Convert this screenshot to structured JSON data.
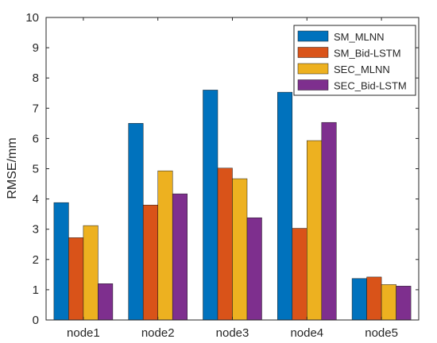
{
  "chart_data": {
    "type": "bar",
    "title": "",
    "xlabel": "",
    "ylabel": "RMSE/mm",
    "ylim": [
      0,
      10
    ],
    "yticks": [
      0,
      1,
      2,
      3,
      4,
      5,
      6,
      7,
      8,
      9,
      10
    ],
    "categories": [
      "node1",
      "node2",
      "node3",
      "node4",
      "node5"
    ],
    "series": [
      {
        "name": "SM_MLNN",
        "color": "#0072BD",
        "values": [
          3.88,
          6.5,
          7.6,
          7.53,
          1.37
        ]
      },
      {
        "name": "SM_Bid-LSTM",
        "color": "#D95319",
        "values": [
          2.72,
          3.8,
          5.02,
          3.03,
          1.42
        ]
      },
      {
        "name": "SEC_MLNN",
        "color": "#EDB120",
        "values": [
          3.12,
          4.93,
          4.67,
          5.93,
          1.17
        ]
      },
      {
        "name": "SEC_Bid-LSTM",
        "color": "#7E2F8E",
        "values": [
          1.2,
          4.17,
          3.38,
          6.53,
          1.12
        ]
      }
    ],
    "grid": false,
    "legend": "top-right"
  }
}
